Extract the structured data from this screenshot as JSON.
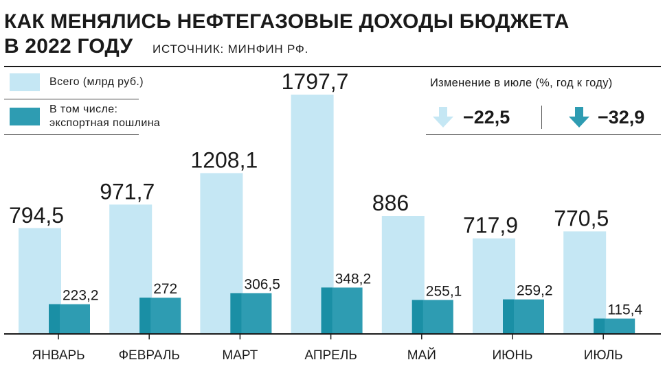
{
  "header": {
    "title_line1": "КАК МЕНЯЛИСЬ НЕФТЕГАЗОВЫЕ ДОХОДЫ БЮДЖЕТА",
    "title_line2": "В 2022 ГОДУ",
    "source": "ИСТОЧНИК: МИНФИН РФ."
  },
  "legend": {
    "total_label": "Всего (млрд руб.)",
    "export_label_line1": "В том числе:",
    "export_label_line2": "экспортная пошлина"
  },
  "change": {
    "title": "Изменение в июле (%, год к году)",
    "total_value": "−22,5",
    "export_value": "−32,9"
  },
  "colors": {
    "total": "#c5e7f4",
    "export": "#2e9cb2",
    "export_dark": "#1a8fa5",
    "text": "#1a1a1a"
  },
  "chart_data": {
    "type": "bar",
    "categories": [
      "ЯНВАРЬ",
      "ФЕВРАЛЬ",
      "МАРТ",
      "АПРЕЛЬ",
      "МАЙ",
      "ИЮНЬ",
      "ИЮЛЬ"
    ],
    "series": [
      {
        "name": "Всего (млрд руб.)",
        "values": [
          794.5,
          971.7,
          1208.1,
          1797.7,
          886,
          717.9,
          770.5
        ],
        "labels": [
          "794,5",
          "971,7",
          "1208,1",
          "1797,7",
          "886",
          "717,9",
          "770,5"
        ]
      },
      {
        "name": "В том числе: экспортная пошлина",
        "values": [
          223.2,
          272,
          306.5,
          348.2,
          255.1,
          259.2,
          115.4
        ],
        "labels": [
          "223,2",
          "272",
          "306,5",
          "348,2",
          "255,1",
          "259,2",
          "115,4"
        ]
      }
    ],
    "ylim": [
      0,
      1797.7
    ],
    "grid": false
  }
}
